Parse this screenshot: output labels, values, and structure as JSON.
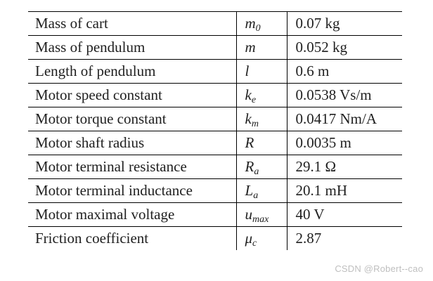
{
  "table": {
    "rows": [
      {
        "parameter": "Mass of cart",
        "symbol": "m",
        "subscript": "0",
        "value": "0.07 kg"
      },
      {
        "parameter": "Mass of pendulum",
        "symbol": "m",
        "subscript": "",
        "value": "0.052 kg"
      },
      {
        "parameter": "Length of pendulum",
        "symbol": "l",
        "subscript": "",
        "value": "0.6 m"
      },
      {
        "parameter": "Motor speed constant",
        "symbol": "k",
        "subscript": "e",
        "value": "0.0538 Vs/m"
      },
      {
        "parameter": "Motor torque constant",
        "symbol": "k",
        "subscript": "m",
        "value": "0.0417 Nm/A"
      },
      {
        "parameter": "Motor shaft radius",
        "symbol": "R",
        "subscript": "",
        "value": "0.0035 m"
      },
      {
        "parameter": "Motor terminal resistance",
        "symbol": "R",
        "subscript": "a",
        "value": "29.1 Ω"
      },
      {
        "parameter": "Motor terminal inductance",
        "symbol": "L",
        "subscript": "a",
        "value": "20.1 mH"
      },
      {
        "parameter": "Motor maximal voltage",
        "symbol": "u",
        "subscript": "max",
        "value": "40 V"
      },
      {
        "parameter": "Friction coefficient",
        "symbol": "μ",
        "subscript": "c",
        "value": "2.87"
      }
    ]
  },
  "watermark": "CSDN @Robert--cao"
}
